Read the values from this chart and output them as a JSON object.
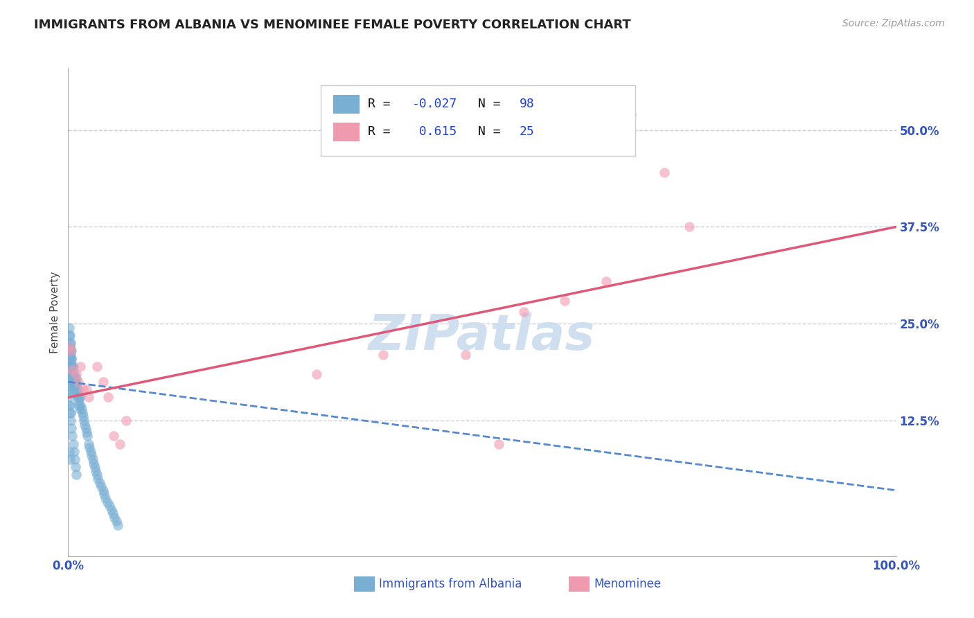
{
  "title": "IMMIGRANTS FROM ALBANIA VS MENOMINEE FEMALE POVERTY CORRELATION CHART",
  "source_text": "Source: ZipAtlas.com",
  "ylabel": "Female Poverty",
  "xlim": [
    0.0,
    1.0
  ],
  "ylim": [
    -0.05,
    0.58
  ],
  "x_ticks": [
    0.0,
    1.0
  ],
  "x_tick_labels": [
    "0.0%",
    "100.0%"
  ],
  "y_ticks": [
    0.125,
    0.25,
    0.375,
    0.5
  ],
  "y_tick_labels": [
    "12.5%",
    "25.0%",
    "37.5%",
    "50.0%"
  ],
  "footer_labels": [
    "Immigrants from Albania",
    "Menominee"
  ],
  "blue_scatter_x": [
    0.0005,
    0.0008,
    0.001,
    0.001,
    0.001,
    0.001,
    0.001,
    0.0012,
    0.0015,
    0.002,
    0.002,
    0.002,
    0.002,
    0.002,
    0.003,
    0.003,
    0.003,
    0.003,
    0.004,
    0.004,
    0.004,
    0.005,
    0.005,
    0.005,
    0.006,
    0.006,
    0.007,
    0.007,
    0.008,
    0.008,
    0.009,
    0.009,
    0.01,
    0.01,
    0.01,
    0.011,
    0.011,
    0.012,
    0.012,
    0.013,
    0.013,
    0.014,
    0.015,
    0.015,
    0.016,
    0.017,
    0.018,
    0.019,
    0.02,
    0.021,
    0.022,
    0.023,
    0.025,
    0.026,
    0.027,
    0.028,
    0.03,
    0.031,
    0.032,
    0.033,
    0.035,
    0.036,
    0.038,
    0.04,
    0.042,
    0.043,
    0.045,
    0.047,
    0.05,
    0.052,
    0.054,
    0.056,
    0.058,
    0.06,
    0.001,
    0.001,
    0.002,
    0.002,
    0.003,
    0.003,
    0.004,
    0.004,
    0.005,
    0.001,
    0.001,
    0.002,
    0.002,
    0.003,
    0.003,
    0.004,
    0.005,
    0.006,
    0.007,
    0.008,
    0.009,
    0.01,
    0.001,
    0.002
  ],
  "blue_scatter_y": [
    0.16,
    0.17,
    0.165,
    0.18,
    0.195,
    0.2,
    0.21,
    0.215,
    0.22,
    0.17,
    0.185,
    0.195,
    0.205,
    0.22,
    0.18,
    0.19,
    0.2,
    0.21,
    0.185,
    0.195,
    0.205,
    0.175,
    0.185,
    0.195,
    0.18,
    0.195,
    0.175,
    0.185,
    0.17,
    0.18,
    0.165,
    0.175,
    0.16,
    0.17,
    0.18,
    0.155,
    0.165,
    0.15,
    0.16,
    0.145,
    0.155,
    0.14,
    0.145,
    0.155,
    0.14,
    0.135,
    0.13,
    0.125,
    0.12,
    0.115,
    0.11,
    0.105,
    0.095,
    0.09,
    0.085,
    0.08,
    0.075,
    0.07,
    0.065,
    0.06,
    0.055,
    0.05,
    0.045,
    0.04,
    0.035,
    0.03,
    0.025,
    0.02,
    0.015,
    0.01,
    0.005,
    0.0,
    -0.005,
    -0.01,
    0.235,
    0.245,
    0.225,
    0.235,
    0.215,
    0.225,
    0.205,
    0.215,
    0.195,
    0.145,
    0.155,
    0.135,
    0.145,
    0.125,
    0.135,
    0.115,
    0.105,
    0.095,
    0.085,
    0.075,
    0.065,
    0.055,
    0.085,
    0.075
  ],
  "pink_scatter_x": [
    0.001,
    0.003,
    0.005,
    0.01,
    0.012,
    0.015,
    0.018,
    0.022,
    0.025,
    0.035,
    0.042,
    0.048,
    0.055,
    0.062,
    0.07,
    0.52,
    0.55,
    0.6,
    0.65,
    0.68,
    0.72,
    0.75,
    0.48,
    0.38,
    0.3
  ],
  "pink_scatter_y": [
    0.22,
    0.215,
    0.19,
    0.185,
    0.175,
    0.195,
    0.165,
    0.165,
    0.155,
    0.195,
    0.175,
    0.155,
    0.105,
    0.095,
    0.125,
    0.095,
    0.265,
    0.28,
    0.305,
    0.52,
    0.445,
    0.375,
    0.21,
    0.21,
    0.185
  ],
  "blue_line_x": [
    0.0,
    1.0
  ],
  "blue_line_y": [
    0.175,
    0.035
  ],
  "pink_line_x": [
    0.0,
    1.0
  ],
  "pink_line_y": [
    0.155,
    0.375
  ],
  "title_color": "#222222",
  "title_fontsize": 13,
  "axis_tick_color": "#3355bb",
  "scatter_blue_color": "#7aafd4",
  "scatter_pink_color": "#f09ab0",
  "scatter_alpha": 0.6,
  "scatter_size": 110,
  "regression_blue_color": "#5588cc",
  "regression_pink_color": "#e05878",
  "grid_color": "#ccccdd",
  "watermark_color": "#d0dff0",
  "watermark_fontsize": 52
}
